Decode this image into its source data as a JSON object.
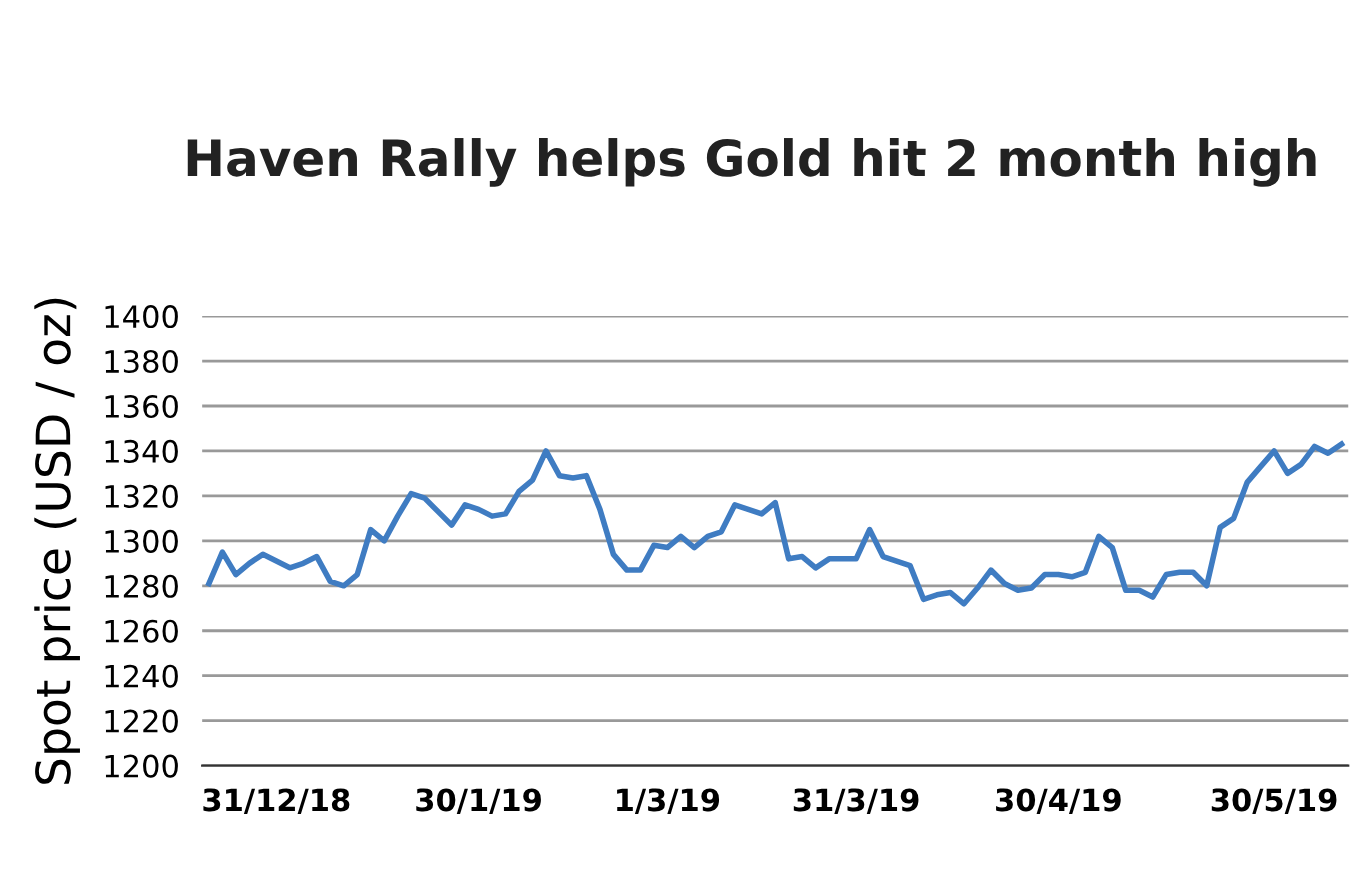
{
  "chart_data": {
    "type": "line",
    "title": "Haven Rally helps Gold hit 2 month high",
    "ylabel": "Spot price (USD / oz)",
    "categories": [
      null,
      null,
      null,
      null,
      null,
      "31/12/18",
      null,
      null,
      null,
      null,
      null,
      null,
      null,
      null,
      null,
      null,
      null,
      null,
      null,
      null,
      "30/1/19",
      null,
      null,
      null,
      null,
      null,
      null,
      null,
      null,
      null,
      null,
      null,
      null,
      null,
      "1/3/19",
      null,
      null,
      null,
      null,
      null,
      null,
      null,
      null,
      null,
      null,
      null,
      null,
      null,
      "31/3/19",
      null,
      null,
      null,
      null,
      null,
      null,
      null,
      null,
      null,
      null,
      null,
      null,
      null,
      null,
      "30/4/19",
      null,
      null,
      null,
      null,
      null,
      null,
      null,
      null,
      null,
      null,
      null,
      null,
      null,
      null,
      null,
      "30/5/19",
      null,
      null,
      null,
      null,
      null
    ],
    "series": [
      {
        "color": "#3f7cc2",
        "values": [
          1281,
          1295,
          1285,
          1290,
          1294,
          1291,
          1288,
          1290,
          1293,
          1282,
          1280,
          1285,
          1305,
          1300,
          1311,
          1321,
          1319,
          1313,
          1307,
          1316,
          1314,
          1311,
          1312,
          1322,
          1327,
          1340,
          1329,
          1328,
          1329,
          1314,
          1294,
          1287,
          1287,
          1298,
          1297,
          1302,
          1297,
          1302,
          1304,
          1316,
          1314,
          1312,
          1317,
          1292,
          1293,
          1288,
          1292,
          1292,
          1292,
          1305,
          1293,
          1291,
          1289,
          1274,
          1276,
          1277,
          1272,
          1279,
          1287,
          1281,
          1278,
          1279,
          1285,
          1285,
          1284,
          1286,
          1302,
          1297,
          1278,
          1278,
          1275,
          1285,
          1286,
          1286,
          1280,
          1306,
          1310,
          1326,
          1333,
          1340,
          1330,
          1334,
          1342,
          1339,
          1343
        ]
      }
    ],
    "ylim": [
      1200,
      1400
    ],
    "yticks": [
      1200,
      1220,
      1240,
      1260,
      1280,
      1300,
      1320,
      1340,
      1360,
      1380,
      1400
    ],
    "grid": "y",
    "marker": "none",
    "line_style": "solid",
    "legend": false
  }
}
